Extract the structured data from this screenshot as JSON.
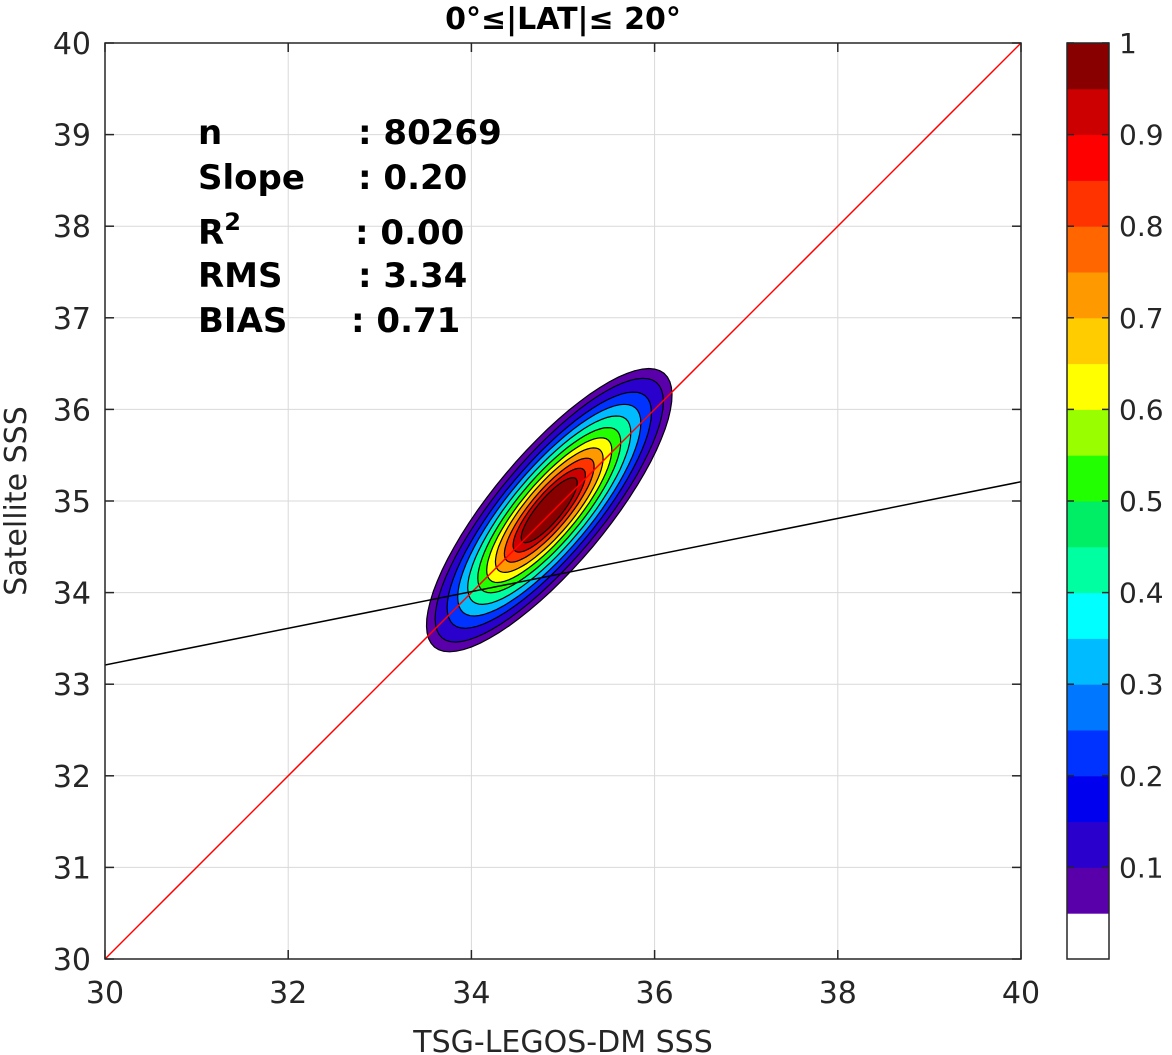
{
  "chart_data": {
    "type": "contour",
    "title": "0°≤|LAT|≤ 20°",
    "xlabel": "TSG-LEGOS-DM SSS",
    "ylabel": "Satellite SSS",
    "xlim": [
      30,
      40
    ],
    "ylim": [
      30,
      40
    ],
    "x_ticks": [
      "30",
      "32",
      "34",
      "36",
      "38",
      "40"
    ],
    "y_ticks": [
      "30",
      "31",
      "32",
      "33",
      "34",
      "35",
      "36",
      "37",
      "38",
      "39",
      "40"
    ],
    "grid": true,
    "stats": [
      {
        "label": "n",
        "value": ": 80269"
      },
      {
        "label": "Slope",
        "value": ": 0.20"
      },
      {
        "label": "R",
        "sup": "2",
        "value": ": 0.00"
      },
      {
        "label": "RMS",
        "value": ": 3.34"
      },
      {
        "label": "BIAS",
        "value": ": 0.71"
      }
    ],
    "lines": [
      {
        "name": "1:1",
        "color": "#ff0000",
        "x": [
          30,
          40
        ],
        "y": [
          30,
          40
        ]
      },
      {
        "name": "fit",
        "color": "#000000",
        "x": [
          30,
          40
        ],
        "y": [
          33.21,
          35.21
        ]
      }
    ],
    "density": {
      "center": [
        34.85,
        34.9
      ],
      "angle_deg": 50,
      "levels": [
        0.05,
        0.1,
        0.2,
        0.3,
        0.4,
        0.5,
        0.6,
        0.7,
        0.8,
        0.9,
        0.95
      ],
      "semi_axes": [
        [
          1.95,
          0.62
        ],
        [
          1.82,
          0.56
        ],
        [
          1.63,
          0.5
        ],
        [
          1.46,
          0.45
        ],
        [
          1.3,
          0.4
        ],
        [
          1.14,
          0.35
        ],
        [
          1.0,
          0.3
        ],
        [
          0.86,
          0.26
        ],
        [
          0.72,
          0.21
        ],
        [
          0.58,
          0.17
        ],
        [
          0.45,
          0.13
        ]
      ]
    },
    "colorbar": {
      "ticks": [
        "0.1",
        "0.2",
        "0.3",
        "0.4",
        "0.5",
        "0.6",
        "0.7",
        "0.8",
        "0.9",
        "1"
      ],
      "tick_values": [
        0.1,
        0.2,
        0.3,
        0.4,
        0.5,
        0.6,
        0.7,
        0.8,
        0.9,
        1.0
      ],
      "colors": [
        "#ffffff",
        "#5a00aa",
        "#2a00cc",
        "#0000ee",
        "#0033ff",
        "#0077ff",
        "#00bbff",
        "#00ffff",
        "#00ffa0",
        "#00ee66",
        "#22ff00",
        "#99ff00",
        "#ffff00",
        "#ffcc00",
        "#ff9900",
        "#ff6600",
        "#ff3300",
        "#ff0000",
        "#cc0000",
        "#880000"
      ]
    }
  }
}
